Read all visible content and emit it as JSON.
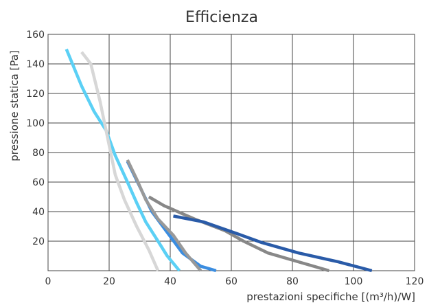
{
  "chart_data": {
    "type": "line",
    "title": "Efficienza",
    "xlabel": "prestazioni specifiche [(m³/h)/W]",
    "ylabel": "pressione statica [Pa]",
    "xlim": [
      0,
      120
    ],
    "ylim": [
      0,
      160
    ],
    "x_ticks": [
      0,
      20,
      40,
      60,
      80,
      100,
      120
    ],
    "y_ticks": [
      20,
      40,
      60,
      80,
      100,
      120,
      140,
      160
    ],
    "grid": true,
    "legend": "none",
    "series": [
      {
        "color": "#5bd0f5",
        "points": [
          [
            6,
            150
          ],
          [
            11,
            125
          ],
          [
            15,
            108
          ],
          [
            19,
            95
          ],
          [
            22,
            78
          ],
          [
            26,
            60
          ],
          [
            29,
            46
          ],
          [
            32,
            33
          ],
          [
            36,
            20
          ],
          [
            39,
            10
          ],
          [
            43,
            0
          ]
        ]
      },
      {
        "color": "#d7d7d7",
        "points": [
          [
            11,
            148
          ],
          [
            14,
            140
          ],
          [
            17,
            115
          ],
          [
            20,
            85
          ],
          [
            22,
            65
          ],
          [
            25,
            48
          ],
          [
            29,
            30
          ],
          [
            33,
            14
          ],
          [
            36,
            0
          ]
        ]
      },
      {
        "color": "#3b8de0",
        "points": [
          [
            26,
            74
          ],
          [
            30,
            57
          ],
          [
            34,
            40
          ],
          [
            39,
            26
          ],
          [
            44,
            12
          ],
          [
            50,
            3
          ],
          [
            55,
            0
          ]
        ]
      },
      {
        "color": "#999999",
        "points": [
          [
            26,
            75
          ],
          [
            29,
            62
          ],
          [
            32,
            48
          ],
          [
            36,
            35
          ],
          [
            41,
            24
          ],
          [
            45,
            12
          ],
          [
            50,
            0
          ]
        ]
      },
      {
        "color": "#888888",
        "points": [
          [
            33,
            50
          ],
          [
            38,
            44
          ],
          [
            48,
            35
          ],
          [
            58,
            27
          ],
          [
            64,
            20
          ],
          [
            72,
            12
          ],
          [
            82,
            6
          ],
          [
            92,
            0
          ]
        ]
      },
      {
        "color": "#2a5ba8",
        "points": [
          [
            41,
            37
          ],
          [
            51,
            33
          ],
          [
            62,
            25
          ],
          [
            70,
            19
          ],
          [
            82,
            12
          ],
          [
            95,
            6
          ],
          [
            106,
            0
          ]
        ]
      }
    ]
  }
}
